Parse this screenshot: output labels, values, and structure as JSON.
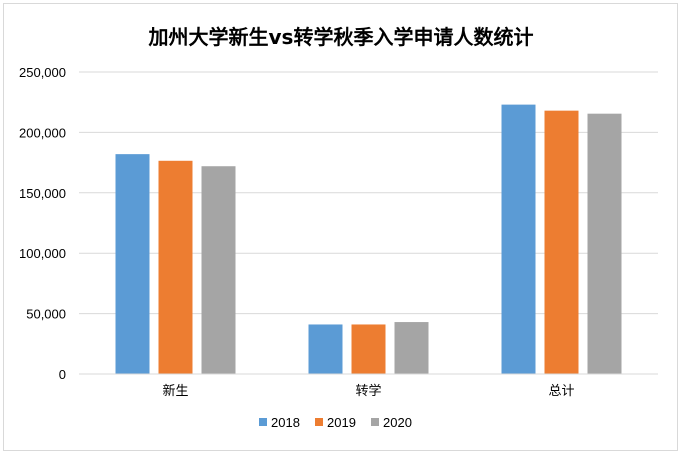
{
  "chart_data": {
    "type": "bar",
    "title": "加州大学新生vs转学秋季入学申请人数统计",
    "xlabel": "",
    "ylabel": "",
    "categories": [
      "新生",
      "转学",
      "总计"
    ],
    "series": [
      {
        "name": "2018",
        "values": [
          182000,
          41000,
          223000
        ],
        "color": "#5b9bd5"
      },
      {
        "name": "2019",
        "values": [
          176500,
          41000,
          218000
        ],
        "color": "#ed7d31"
      },
      {
        "name": "2020",
        "values": [
          172000,
          43000,
          215500
        ],
        "color": "#a5a5a5"
      }
    ],
    "ylim": [
      0,
      250000
    ],
    "yticks": [
      "0",
      "50,000",
      "100,000",
      "150,000",
      "200,000",
      "250,000"
    ],
    "ytick_values": [
      0,
      50000,
      100000,
      150000,
      200000,
      250000
    ],
    "grid": true,
    "legend_position": "bottom"
  }
}
